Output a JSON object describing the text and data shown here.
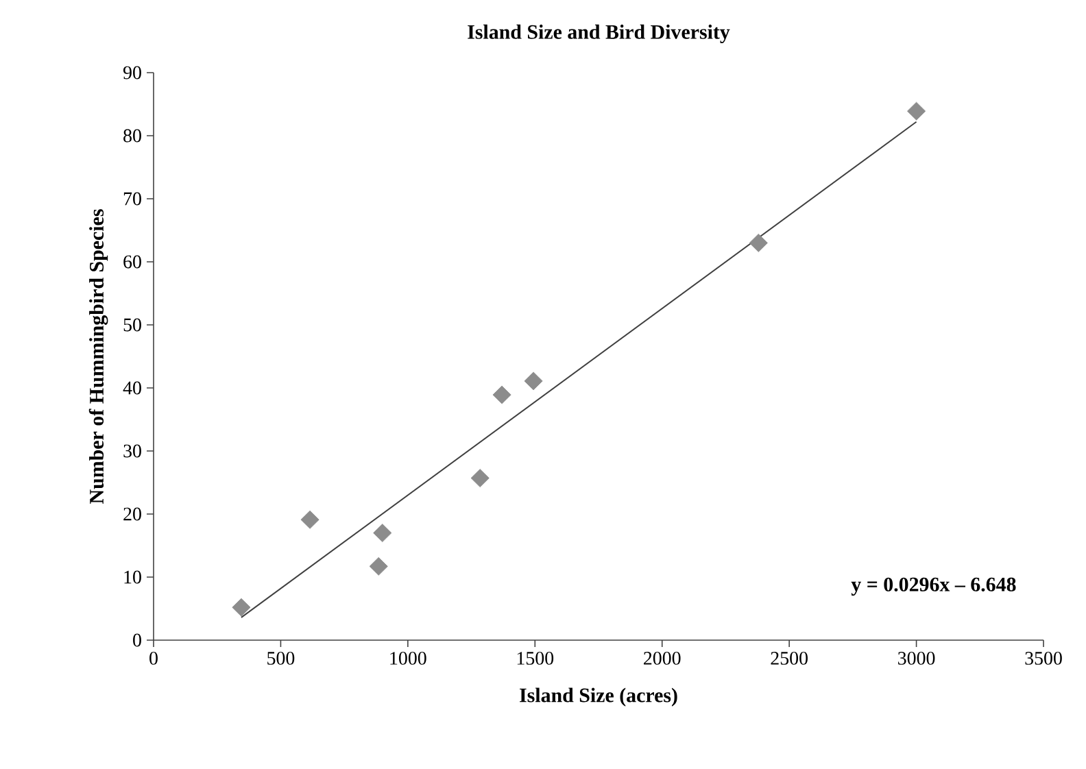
{
  "chart_data": {
    "type": "scatter",
    "title": "Island Size and Bird Diversity",
    "xlabel": "Island Size (acres)",
    "ylabel": "Number of Hummingbird Species",
    "xlim": [
      0,
      3500
    ],
    "ylim": [
      0,
      90
    ],
    "xticks": [
      0,
      500,
      1000,
      1500,
      2000,
      2500,
      3000,
      3500
    ],
    "yticks": [
      0,
      10,
      20,
      30,
      40,
      50,
      60,
      70,
      80,
      90
    ],
    "series": [
      {
        "marker": "diamond",
        "color": "#8c8c8c",
        "x": [
          345,
          615,
          885,
          900,
          1284,
          1370,
          1494,
          2379,
          3000
        ],
        "values": [
          5.2,
          19.1,
          11.7,
          17,
          25.7,
          38.9,
          41.1,
          63,
          83.9
        ]
      },
      {
        "type": "line",
        "marker": "none",
        "color": "#404040",
        "x": [
          345,
          3000
        ],
        "values": [
          3.6,
          82.2
        ]
      }
    ],
    "annotations": [
      "y = 0.0296x – 6.648"
    ]
  }
}
